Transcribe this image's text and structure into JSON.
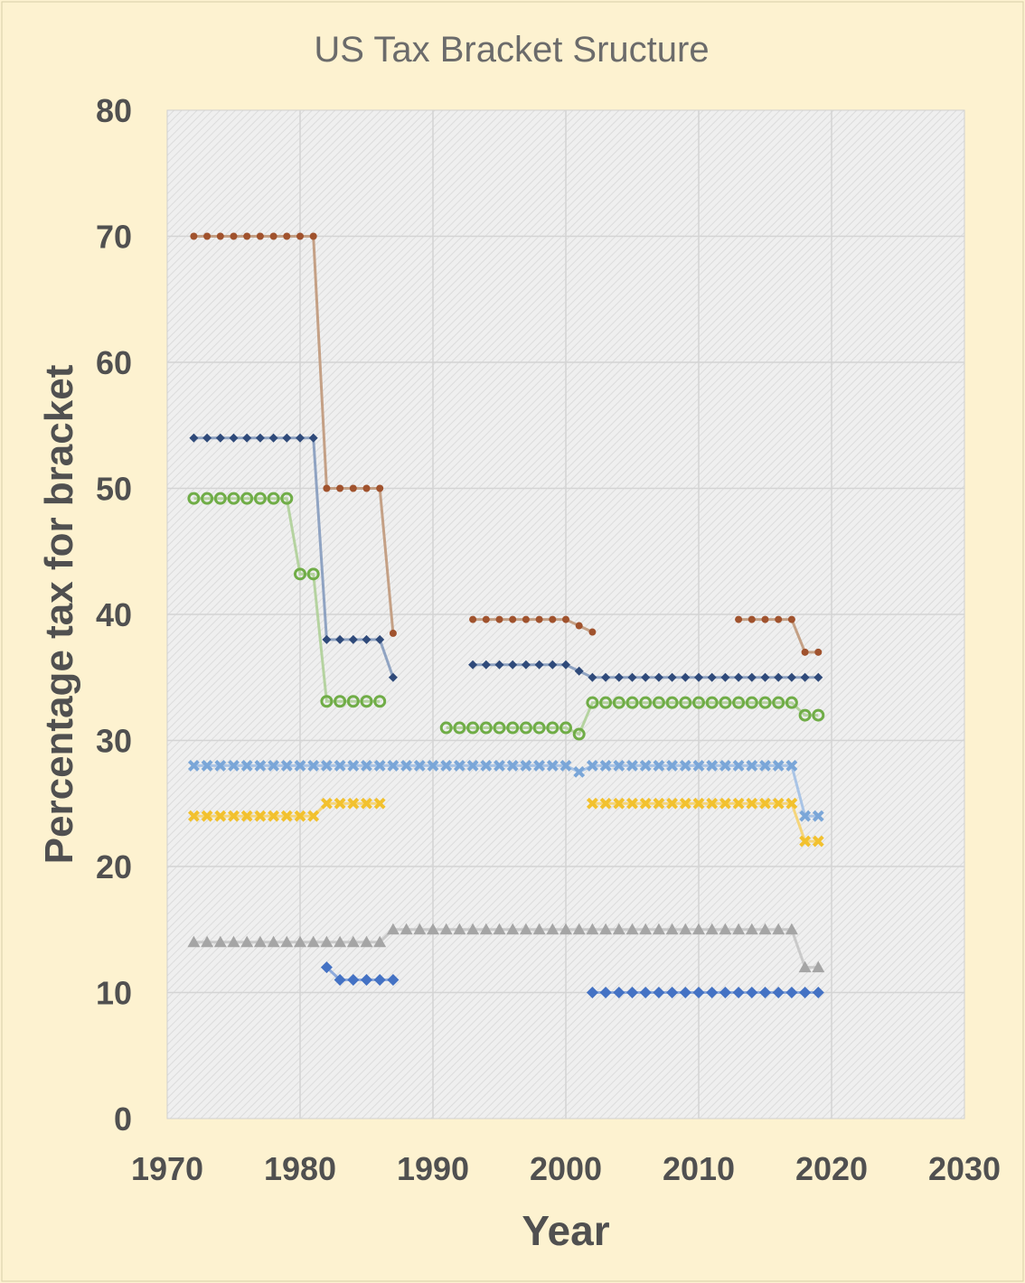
{
  "chart_data": {
    "type": "line",
    "title": "US Tax Bracket Sructure",
    "xlabel": "Year",
    "ylabel": "Percentage tax for bracket",
    "xlim": [
      1970,
      2030
    ],
    "ylim": [
      0,
      80
    ],
    "x_ticks": [
      "1970",
      "1980",
      "1990",
      "2000",
      "2010",
      "2020",
      "2030"
    ],
    "y_ticks": [
      "0",
      "10",
      "20",
      "30",
      "40",
      "50",
      "60",
      "70",
      "80"
    ],
    "grid": true,
    "legend": "none",
    "series": [
      {
        "color": "#a0522d",
        "line_color": "#c4a085",
        "marker": "dot",
        "segments": [
          {
            "x": [
              1972,
              1973,
              1974,
              1975,
              1976,
              1977,
              1978,
              1979,
              1980,
              1981,
              1982,
              1983,
              1984,
              1985,
              1986,
              1987
            ],
            "y": [
              70,
              70,
              70,
              70,
              70,
              70,
              70,
              70,
              70,
              70,
              50,
              50,
              50,
              50,
              50,
              38.5
            ]
          },
          {
            "x": [
              1993,
              1994,
              1995,
              1996,
              1997,
              1998,
              1999,
              2000,
              2001,
              2002
            ],
            "y": [
              39.6,
              39.6,
              39.6,
              39.6,
              39.6,
              39.6,
              39.6,
              39.6,
              39.1,
              38.6
            ]
          },
          {
            "x": [
              2013,
              2014,
              2015,
              2016,
              2017,
              2018,
              2019
            ],
            "y": [
              39.6,
              39.6,
              39.6,
              39.6,
              39.6,
              37,
              37
            ]
          }
        ]
      },
      {
        "color": "#2f4a7a",
        "line_color": "#8fa3c2",
        "marker": "small-diamond",
        "segments": [
          {
            "x": [
              1972,
              1973,
              1974,
              1975,
              1976,
              1977,
              1978,
              1979,
              1980,
              1981,
              1982,
              1983,
              1984,
              1985,
              1986,
              1987
            ],
            "y": [
              54,
              54,
              54,
              54,
              54,
              54,
              54,
              54,
              54,
              54,
              38,
              38,
              38,
              38,
              38,
              35
            ]
          },
          {
            "x": [
              1993,
              1994,
              1995,
              1996,
              1997,
              1998,
              1999,
              2000,
              2001,
              2002,
              2003,
              2004,
              2005,
              2006,
              2007,
              2008,
              2009,
              2010,
              2011,
              2012,
              2013,
              2014,
              2015,
              2016,
              2017,
              2018,
              2019
            ],
            "y": [
              36,
              36,
              36,
              36,
              36,
              36,
              36,
              36,
              35.5,
              35,
              35,
              35,
              35,
              35,
              35,
              35,
              35,
              35,
              35,
              35,
              35,
              35,
              35,
              35,
              35,
              35,
              35
            ]
          }
        ]
      },
      {
        "color": "#70ad47",
        "line_color": "#b5d3a0",
        "marker": "ring",
        "segments": [
          {
            "x": [
              1972,
              1973,
              1974,
              1975,
              1976,
              1977,
              1978,
              1979,
              1980,
              1981,
              1982,
              1983,
              1984,
              1985,
              1986
            ],
            "y": [
              49.2,
              49.2,
              49.2,
              49.2,
              49.2,
              49.2,
              49.2,
              49.2,
              43.2,
              43.2,
              33.1,
              33.1,
              33.1,
              33.1,
              33.1
            ]
          },
          {
            "x": [
              1991,
              1992,
              1993,
              1994,
              1995,
              1996,
              1997,
              1998,
              1999,
              2000,
              2001,
              2002,
              2003,
              2004,
              2005,
              2006,
              2007,
              2008,
              2009,
              2010,
              2011,
              2012,
              2013,
              2014,
              2015,
              2016,
              2017,
              2018,
              2019
            ],
            "y": [
              31,
              31,
              31,
              31,
              31,
              31,
              31,
              31,
              31,
              31,
              30.5,
              33,
              33,
              33,
              33,
              33,
              33,
              33,
              33,
              33,
              33,
              33,
              33,
              33,
              33,
              33,
              33,
              32,
              32
            ]
          }
        ]
      },
      {
        "color": "#7aa6d8",
        "line_color": "#a9c4e6",
        "marker": "cross",
        "segments": [
          {
            "x": [
              1972,
              1973,
              1974,
              1975,
              1976,
              1977,
              1978,
              1979,
              1980,
              1981,
              1982,
              1983,
              1984,
              1985,
              1986,
              1987,
              1988,
              1989,
              1990,
              1991,
              1992,
              1993,
              1994,
              1995,
              1996,
              1997,
              1998,
              1999,
              2000,
              2001,
              2002,
              2003,
              2004,
              2005,
              2006,
              2007,
              2008,
              2009,
              2010,
              2011,
              2012,
              2013,
              2014,
              2015,
              2016,
              2017,
              2018,
              2019
            ],
            "y": [
              28,
              28,
              28,
              28,
              28,
              28,
              28,
              28,
              28,
              28,
              28,
              28,
              28,
              28,
              28,
              28,
              28,
              28,
              28,
              28,
              28,
              28,
              28,
              28,
              28,
              28,
              28,
              28,
              28,
              27.5,
              28,
              28,
              28,
              28,
              28,
              28,
              28,
              28,
              28,
              28,
              28,
              28,
              28,
              28,
              28,
              28,
              24,
              24
            ]
          }
        ]
      },
      {
        "color": "#f2c12e",
        "line_color": "#f5d57a",
        "marker": "cross",
        "segments": [
          {
            "x": [
              1972,
              1973,
              1974,
              1975,
              1976,
              1977,
              1978,
              1979,
              1980,
              1981,
              1982,
              1983,
              1984,
              1985,
              1986
            ],
            "y": [
              24,
              24,
              24,
              24,
              24,
              24,
              24,
              24,
              24,
              24,
              25,
              25,
              25,
              25,
              25
            ]
          },
          {
            "x": [
              2002,
              2003,
              2004,
              2005,
              2006,
              2007,
              2008,
              2009,
              2010,
              2011,
              2012,
              2013,
              2014,
              2015,
              2016,
              2017,
              2018,
              2019
            ],
            "y": [
              25,
              25,
              25,
              25,
              25,
              25,
              25,
              25,
              25,
              25,
              25,
              25,
              25,
              25,
              25,
              25,
              22,
              22
            ]
          }
        ]
      },
      {
        "color": "#a5a5a5",
        "line_color": "#c9c9c9",
        "marker": "triangle",
        "segments": [
          {
            "x": [
              1972,
              1973,
              1974,
              1975,
              1976,
              1977,
              1978,
              1979,
              1980,
              1981,
              1982,
              1983,
              1984,
              1985,
              1986,
              1987,
              1988,
              1989,
              1990,
              1991,
              1992,
              1993,
              1994,
              1995,
              1996,
              1997,
              1998,
              1999,
              2000,
              2001,
              2002,
              2003,
              2004,
              2005,
              2006,
              2007,
              2008,
              2009,
              2010,
              2011,
              2012,
              2013,
              2014,
              2015,
              2016,
              2017,
              2018,
              2019
            ],
            "y": [
              14,
              14,
              14,
              14,
              14,
              14,
              14,
              14,
              14,
              14,
              14,
              14,
              14,
              14,
              14,
              15,
              15,
              15,
              15,
              15,
              15,
              15,
              15,
              15,
              15,
              15,
              15,
              15,
              15,
              15,
              15,
              15,
              15,
              15,
              15,
              15,
              15,
              15,
              15,
              15,
              15,
              15,
              15,
              15,
              15,
              15,
              12,
              12
            ]
          }
        ]
      },
      {
        "color": "#4472c4",
        "line_color": "#8eaadb",
        "marker": "diamond",
        "segments": [
          {
            "x": [
              1982,
              1983,
              1984,
              1985,
              1986,
              1987
            ],
            "y": [
              12,
              11,
              11,
              11,
              11,
              11
            ]
          },
          {
            "x": [
              2002,
              2003,
              2004,
              2005,
              2006,
              2007,
              2008,
              2009,
              2010,
              2011,
              2012,
              2013,
              2014,
              2015,
              2016,
              2017,
              2018,
              2019
            ],
            "y": [
              10,
              10,
              10,
              10,
              10,
              10,
              10,
              10,
              10,
              10,
              10,
              10,
              10,
              10,
              10,
              10,
              10,
              10
            ]
          }
        ]
      }
    ]
  }
}
